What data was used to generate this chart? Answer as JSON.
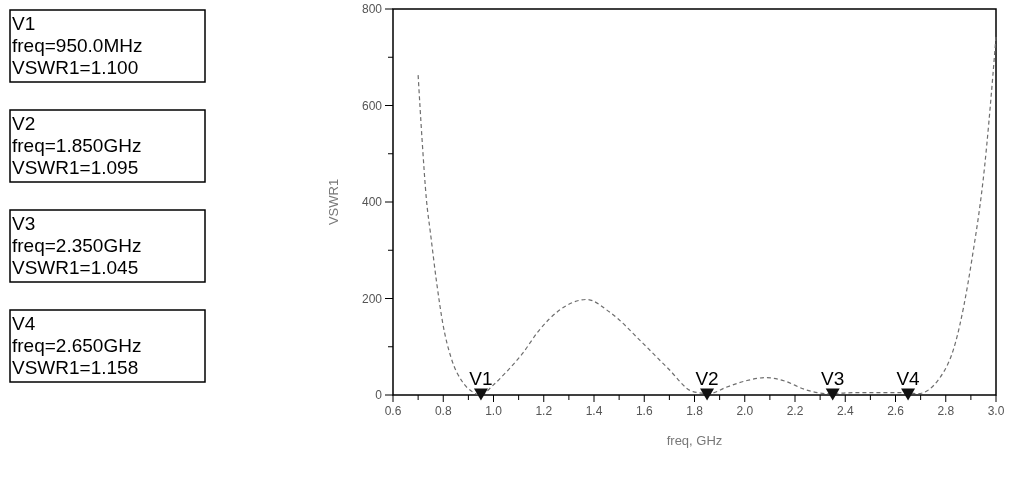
{
  "chart_data": {
    "type": "line",
    "xlabel": "freq, GHz",
    "ylabel": "VSWR1",
    "series": [
      {
        "color": "#6e6e6e",
        "line_style": "dashed",
        "x": [
          0.7,
          0.716,
          0.733,
          0.749,
          0.774,
          0.799,
          0.832,
          0.874,
          0.915,
          0.948,
          0.998,
          1.048,
          1.114,
          1.18,
          1.263,
          1.371,
          1.462,
          1.595,
          1.695,
          1.794,
          1.86,
          1.926,
          2.009,
          2.084,
          2.159,
          2.242,
          2.325,
          2.458,
          2.624,
          2.69,
          2.773,
          2.84,
          2.905,
          2.955,
          2.988,
          3.0
        ],
        "values": [
          663,
          527,
          405,
          336,
          232,
          146,
          76,
          29,
          7,
          0,
          20,
          46,
          85,
          133,
          176,
          198,
          172,
          107,
          55,
          7,
          3,
          16,
          30,
          36,
          29,
          11,
          3,
          5,
          5,
          3,
          33,
          111,
          284,
          475,
          665,
          743
        ]
      },
      {
        "type": "scatter",
        "color": "#111111",
        "marker": "triangle",
        "x": [
          0.95,
          1.85,
          2.35,
          2.65
        ],
        "values": [
          1,
          1,
          1,
          1
        ],
        "value_labels": [
          "V1",
          "V2",
          "V3",
          "V4"
        ]
      }
    ],
    "xlim": [
      0.6,
      3.0
    ],
    "ylim": [
      0,
      800
    ],
    "xticks": [
      0.6,
      {
        "value": 0.7,
        "label": null
      },
      0.8,
      {
        "value": 0.9,
        "label": null
      },
      {
        "value": 1.0,
        "label": "1.0"
      },
      {
        "value": 1.1,
        "label": null
      },
      1.2,
      {
        "value": 1.3,
        "label": null
      },
      1.4,
      {
        "value": 1.5,
        "label": null
      },
      1.6,
      {
        "value": 1.7,
        "label": null
      },
      1.8,
      {
        "value": 1.9,
        "label": null
      },
      {
        "value": 2.0,
        "label": "2.0"
      },
      {
        "value": 2.1,
        "label": null
      },
      2.2,
      {
        "value": 2.3,
        "label": null
      },
      2.4,
      {
        "value": 2.5,
        "label": null
      },
      2.6,
      {
        "value": 2.7,
        "label": null
      },
      2.8,
      {
        "value": 2.9,
        "label": null
      },
      {
        "value": 3.0,
        "label": "3.0"
      }
    ],
    "yticks": [
      0,
      {
        "value": 100,
        "label": null
      },
      200,
      {
        "value": 300,
        "label": null
      },
      400,
      {
        "value": 500,
        "label": null
      },
      600,
      {
        "value": 700,
        "label": null
      },
      800
    ],
    "grid": false,
    "marker": "none",
    "annotations": [
      "V1\nfreq=950.0MHz\nVSWR1=1.100",
      "V2\nfreq=1.850GHz\nVSWR1=1.095",
      "V3\nfreq=2.350GHz\nVSWR1=1.045",
      "V4\nfreq=2.650GHz\nVSWR1=1.158"
    ]
  }
}
